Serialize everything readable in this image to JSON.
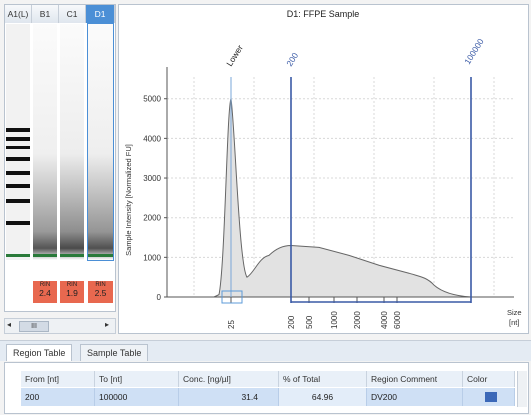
{
  "gel": {
    "lanes": [
      {
        "label": "A1(L)",
        "selected": false
      },
      {
        "label": "B1",
        "selected": false
      },
      {
        "label": "C1",
        "selected": false
      },
      {
        "label": "D1",
        "selected": true
      }
    ],
    "rin_label": "RIN",
    "rin_values": [
      "2.4",
      "1.9",
      "2.5"
    ],
    "scroll_thumb": "III"
  },
  "plot": {
    "title": "D1: FFPE Sample",
    "ylabel": "Sample Intensity [Normalized FU]",
    "xlabel_line1": "Size",
    "xlabel_line2": "[nt]",
    "marker_lower": "Lower",
    "marker_200": "200",
    "marker_100000": "100000",
    "yticks": [
      "5000",
      "4000",
      "3000",
      "2000",
      "1000",
      "0"
    ],
    "xticks": [
      "25",
      "200",
      "500",
      "1000",
      "2000",
      "4000",
      "6000"
    ]
  },
  "chart_data": {
    "type": "area",
    "title": "D1: FFPE Sample",
    "ylabel": "Sample Intensity [Normalized FU]",
    "xlabel": "Size [nt]",
    "ylim": [
      0,
      5800
    ],
    "x_tick_labels": [
      "25",
      "200",
      "500",
      "1000",
      "2000",
      "4000",
      "6000"
    ],
    "x": [
      "25",
      "50",
      "100",
      "150",
      "200",
      "300",
      "500",
      "1000",
      "2000",
      "4000",
      "6000"
    ],
    "values": [
      0,
      5000,
      500,
      1050,
      1300,
      1250,
      1050,
      800,
      600,
      500,
      0
    ],
    "markers": [
      "Lower",
      "200",
      "100000"
    ],
    "region": {
      "from": 200,
      "to": 100000
    },
    "grid": true
  },
  "tabs": {
    "region_table": "Region Table",
    "sample_table": "Sample Table"
  },
  "region_table": {
    "headers": [
      "From [nt]",
      "To [nt]",
      "Conc. [ng/µl]",
      "% of Total",
      "Region Comment",
      "Color"
    ],
    "rows": [
      {
        "from": "200",
        "to": "100000",
        "conc": "31.4",
        "pct": "64.96",
        "comment": "DV200",
        "color": "#3b68b8"
      }
    ]
  }
}
